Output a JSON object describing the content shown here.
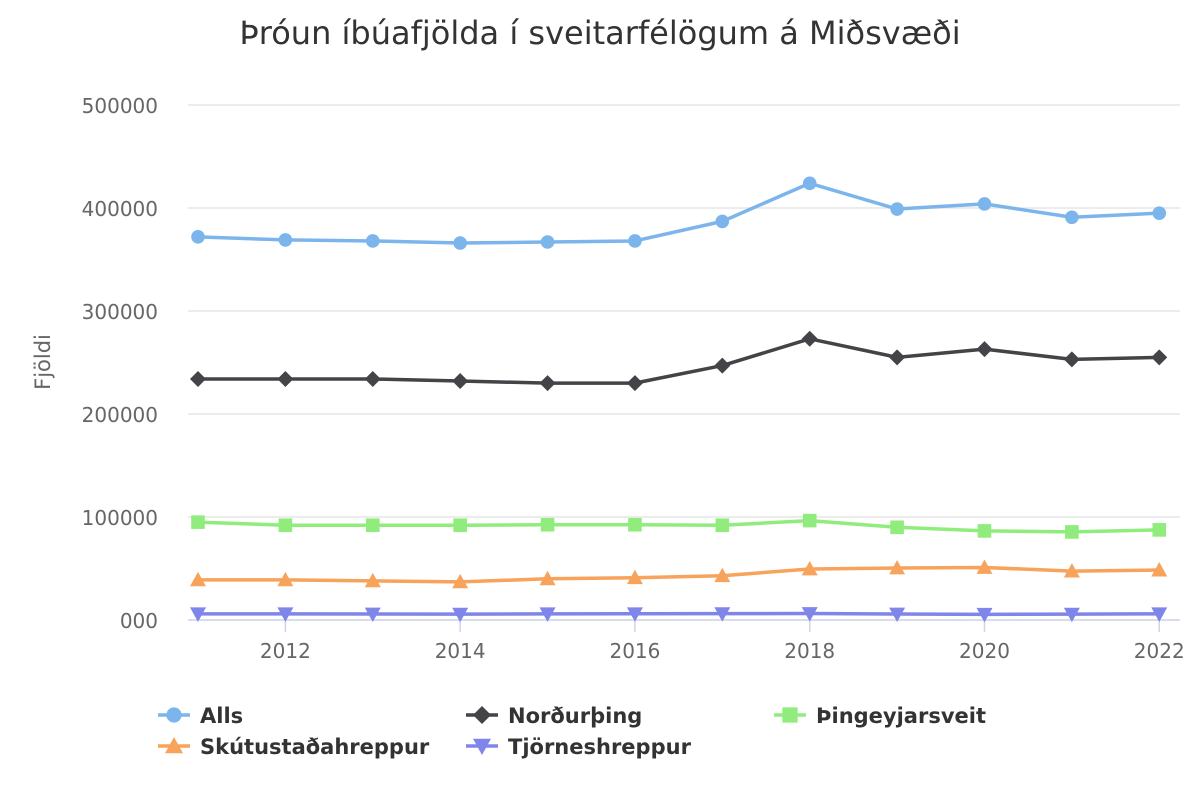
{
  "chart_data": {
    "type": "line",
    "title": "Þróun íbúafjölda í sveitarfélögum á Miðsvæði",
    "xlabel": "",
    "ylabel": "Fjöldi",
    "x": [
      2011,
      2012,
      2013,
      2014,
      2015,
      2016,
      2017,
      2018,
      2019,
      2020,
      2021,
      2022
    ],
    "xlim": [
      2011,
      2022.1
    ],
    "xticks": [
      2012,
      2014,
      2016,
      2018,
      2020,
      2022
    ],
    "ylim": [
      0,
      500000
    ],
    "yticks": [
      0,
      100000,
      200000,
      300000,
      400000,
      500000
    ],
    "ytick_labels": [
      "000",
      "100000",
      "200000",
      "300000",
      "400000",
      "500000"
    ],
    "grid": true,
    "legend_position": "bottom",
    "series": [
      {
        "name": "Alls",
        "color": "#7cb5ec",
        "marker": "circle",
        "values": [
          372000,
          369000,
          368000,
          366000,
          367000,
          368000,
          387000,
          424000,
          399000,
          404000,
          391000,
          395000
        ]
      },
      {
        "name": "Norðurþing",
        "color": "#434348",
        "marker": "diamond",
        "values": [
          234000,
          234000,
          234000,
          232000,
          230000,
          230000,
          247000,
          273000,
          255000,
          263000,
          253000,
          255000
        ]
      },
      {
        "name": "Þingeyjarsveit",
        "color": "#90ed7d",
        "marker": "square",
        "values": [
          95000,
          92000,
          92000,
          92000,
          92500,
          92500,
          92000,
          96500,
          90000,
          86500,
          85500,
          87500
        ]
      },
      {
        "name": "Skútustaðahreppur",
        "color": "#f7a35c",
        "marker": "triangle",
        "values": [
          39000,
          39000,
          38000,
          37000,
          40000,
          41000,
          43000,
          49500,
          50500,
          51000,
          47500,
          48500
        ]
      },
      {
        "name": "Tjörneshreppur",
        "color": "#8085e9",
        "marker": "triangle-down",
        "values": [
          6000,
          6000,
          5800,
          5700,
          6000,
          6100,
          6200,
          6300,
          5800,
          5500,
          5700,
          6000
        ]
      }
    ]
  }
}
